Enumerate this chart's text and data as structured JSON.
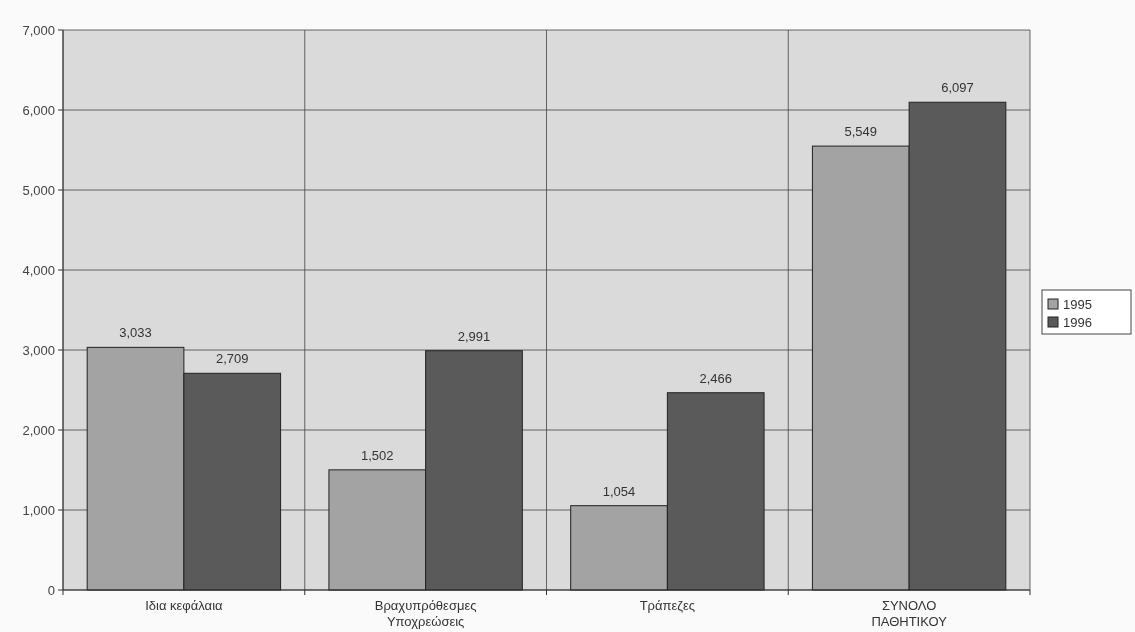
{
  "chart_data": {
    "type": "bar",
    "categories": [
      "Ιδια κεφάλαια",
      "Βραχυπρόθεσμες\nΥποχρεώσεις",
      "Τράπεζες",
      "ΣΥΝΟΛΟ\nΠΑΘΗΤΙΚΟΥ"
    ],
    "series": [
      {
        "name": "1995",
        "color": "#a3a3a3",
        "values": [
          3033,
          1502,
          1054,
          5549
        ],
        "value_labels": [
          "3,033",
          "1,502",
          "1,054",
          "5,549"
        ]
      },
      {
        "name": "1996",
        "color": "#5a5a5a",
        "values": [
          2709,
          2991,
          2466,
          6097
        ],
        "value_labels": [
          "2,709",
          "2,991",
          "2,466",
          "6,097"
        ]
      }
    ],
    "ylim": [
      0,
      7000
    ],
    "yticks": [
      {
        "value": 0,
        "label": "0"
      },
      {
        "value": 1000,
        "label": "1,000"
      },
      {
        "value": 2000,
        "label": "2,000"
      },
      {
        "value": 3000,
        "label": "3,000"
      },
      {
        "value": 4000,
        "label": "4,000"
      },
      {
        "value": 5000,
        "label": "5,000"
      },
      {
        "value": 6000,
        "label": "6,000"
      },
      {
        "value": 7000,
        "label": "7,000"
      }
    ],
    "grid": true,
    "legend": "right"
  }
}
